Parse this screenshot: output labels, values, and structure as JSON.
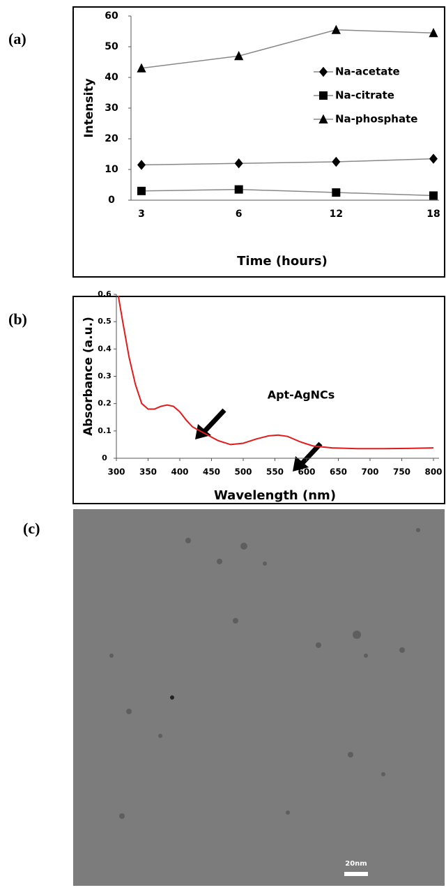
{
  "panel_labels": [
    "(a)",
    "(b)",
    "(c)"
  ],
  "chart_data": [
    {
      "type": "line",
      "xlabel": "Time (hours)",
      "ylabel": "Intensity",
      "categories": [
        "3",
        "6",
        "12",
        "18"
      ],
      "ylim": [
        0,
        60
      ],
      "yticks": [
        0,
        10,
        20,
        30,
        40,
        50,
        60
      ],
      "series": [
        {
          "name": "Na-acetate",
          "color": "#000000",
          "marker": "diamond",
          "values": [
            11.5,
            12,
            12.5,
            13.5
          ]
        },
        {
          "name": "Na-citrate",
          "color": "#000000",
          "marker": "square",
          "values": [
            3,
            3.5,
            2.5,
            1.5
          ]
        },
        {
          "name": "Na-phosphate",
          "color": "#000000",
          "marker": "triangle",
          "values": [
            43,
            47,
            55.5,
            54.5
          ]
        }
      ]
    },
    {
      "type": "line",
      "xlabel": "Wavelength (nm)",
      "ylabel": "Absorbance (a.u.)",
      "annotation": "Apt-AgNCs",
      "color": "#e31a1c",
      "x": [
        303,
        310,
        320,
        330,
        340,
        350,
        360,
        370,
        380,
        390,
        400,
        410,
        420,
        440,
        460,
        480,
        500,
        520,
        540,
        555,
        570,
        590,
        610,
        640,
        680,
        720,
        760,
        800
      ],
      "values": [
        0.595,
        0.5,
        0.37,
        0.27,
        0.2,
        0.18,
        0.18,
        0.19,
        0.195,
        0.19,
        0.17,
        0.14,
        0.115,
        0.09,
        0.065,
        0.05,
        0.055,
        0.07,
        0.082,
        0.085,
        0.08,
        0.06,
        0.045,
        0.038,
        0.035,
        0.035,
        0.036,
        0.038
      ],
      "xlim": [
        300,
        800
      ],
      "xticks": [
        300,
        350,
        400,
        450,
        500,
        550,
        600,
        650,
        700,
        750,
        800
      ],
      "ylim": [
        0,
        0.6
      ],
      "yticks": [
        0,
        0.1,
        0.2,
        0.3,
        0.4,
        0.5,
        0.6
      ]
    }
  ],
  "micrograph": {
    "scale_bar": "20nm"
  }
}
